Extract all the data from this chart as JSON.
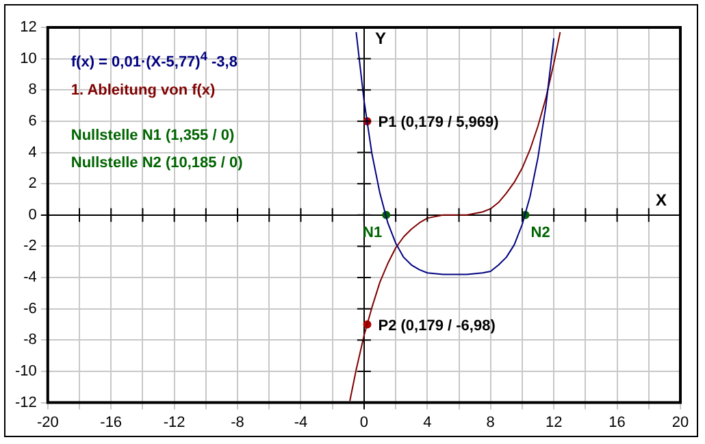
{
  "chart_data": {
    "type": "line",
    "xlabel": "X",
    "ylabel": "Y",
    "xlim": [
      -20,
      20
    ],
    "ylim": [
      -12,
      12
    ],
    "xticks": [
      -20,
      {
        "value": -18,
        "label": null
      },
      -16,
      {
        "value": -14,
        "label": null
      },
      -12,
      {
        "value": -10,
        "label": null
      },
      -8,
      {
        "value": -6,
        "label": null
      },
      -4,
      {
        "value": -2,
        "label": null
      },
      0,
      {
        "value": 2,
        "label": null
      },
      4,
      {
        "value": 6,
        "label": null
      },
      8,
      {
        "value": 10,
        "label": null
      },
      12,
      {
        "value": 14,
        "label": null
      },
      16,
      {
        "value": 18,
        "label": null
      },
      20
    ],
    "yticks": [
      -12,
      -10,
      -8,
      -6,
      -4,
      -2,
      0,
      2,
      4,
      6,
      8,
      10,
      12
    ],
    "grid": true,
    "legend": "top left",
    "marker": "none",
    "line_style": "solid",
    "series": [
      {
        "name": "f(x) = 0,01·(X-5,77)$^{4}$ -3,8",
        "color": "#000080",
        "x": [
          -0.5,
          0,
          0.5,
          1,
          1.5,
          2,
          2.5,
          3,
          3.5,
          4,
          5,
          5.8,
          6.5,
          7.5,
          8,
          8.5,
          9,
          9.5,
          10,
          10.5,
          11,
          11.5,
          12
        ],
        "values": [
          11.7,
          7.3,
          3.9,
          1.4,
          -0.5,
          -1.8,
          -2.7,
          -3.2,
          -3.5,
          -3.7,
          -3.8,
          -3.8,
          -3.8,
          -3.7,
          -3.6,
          -3.2,
          -2.7,
          -1.9,
          -0.6,
          1.2,
          3.7,
          7,
          11.3
        ]
      },
      {
        "name": "1. Ableitung von f(x)",
        "color": "#800000",
        "x": [
          -0.9,
          -0.5,
          0,
          0.5,
          1,
          1.5,
          2,
          2.5,
          3,
          3.5,
          4,
          5,
          5.8,
          6.5,
          7.5,
          8,
          8.5,
          9,
          9.5,
          10,
          10.5,
          11,
          11.5,
          12,
          12.4
        ],
        "values": [
          -11.9,
          -9.9,
          -7.7,
          -5.9,
          -4.3,
          -3.1,
          -2.1,
          -1.4,
          -0.9,
          -0.5,
          -0.2,
          0,
          0,
          0,
          0.2,
          0.4,
          0.8,
          1.4,
          2.1,
          3,
          4.2,
          5.7,
          7.5,
          9.7,
          11.7
        ]
      },
      {
        "type": "scatter",
        "color": "#006400",
        "marker": "circle",
        "x": [
          1.4,
          10.2
        ],
        "values": [
          0,
          0
        ]
      },
      {
        "type": "scatter",
        "color": "#b00000",
        "marker": "circle",
        "x": [
          0.2,
          0.2
        ],
        "values": [
          6,
          -7
        ]
      }
    ],
    "annotations": [
      "Nullstelle N1 (1,355 / 0)",
      "Nullstelle N2 (10,185 / 0)",
      {
        "text": "N1",
        "x": 1.4,
        "y": 0
      },
      {
        "text": "N2",
        "x": 10.2,
        "y": 0
      },
      {
        "text": "P1 (0,179 / 5,969)",
        "x": 0.2,
        "y": 6
      },
      {
        "text": "P2 (0,179 / -6,98)",
        "x": 0.2,
        "y": -7
      }
    ]
  }
}
